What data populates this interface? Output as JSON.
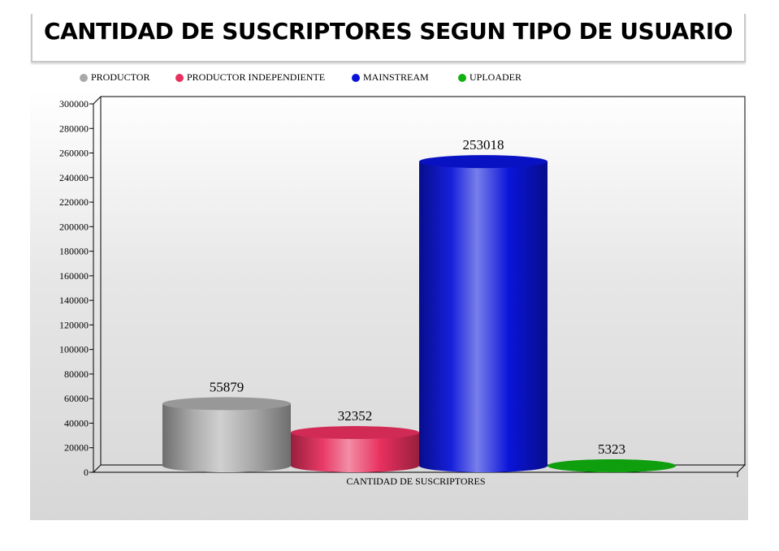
{
  "title": "CANTIDAD DE SUSCRIPTORES SEGUN TIPO DE USUARIO",
  "legend": [
    {
      "label": "PRODUCTOR",
      "color": "#a9a9a9"
    },
    {
      "label": "PRODUCTOR INDEPENDIENTE",
      "color": "#e8305e"
    },
    {
      "label": "MAINSTREAM",
      "color": "#0a14d8"
    },
    {
      "label": "UPLOADER",
      "color": "#10b010"
    }
  ],
  "chart_data": {
    "type": "bar",
    "style": "3d-cylinder",
    "title": "CANTIDAD DE SUSCRIPTORES SEGUN TIPO DE USUARIO",
    "xlabel": "CANTIDAD DE SUSCRIPTORES",
    "ylabel": "",
    "categories": [
      "CANTIDAD DE SUSCRIPTORES"
    ],
    "series": [
      {
        "name": "PRODUCTOR",
        "values": [
          55879
        ],
        "color": "#a9a9a9"
      },
      {
        "name": "PRODUCTOR INDEPENDIENTE",
        "values": [
          32352
        ],
        "color": "#e8305e"
      },
      {
        "name": "MAINSTREAM",
        "values": [
          253018
        ],
        "color": "#0a14d8"
      },
      {
        "name": "UPLOADER",
        "values": [
          5323
        ],
        "color": "#10b010"
      }
    ],
    "data_labels": [
      "55879",
      "32352",
      "253018",
      "5323"
    ],
    "ylim": [
      0,
      300000
    ],
    "yticks": [
      0,
      20000,
      40000,
      60000,
      80000,
      100000,
      120000,
      140000,
      160000,
      180000,
      200000,
      220000,
      240000,
      260000,
      280000,
      300000
    ],
    "legend_position": "top",
    "grid": false
  }
}
